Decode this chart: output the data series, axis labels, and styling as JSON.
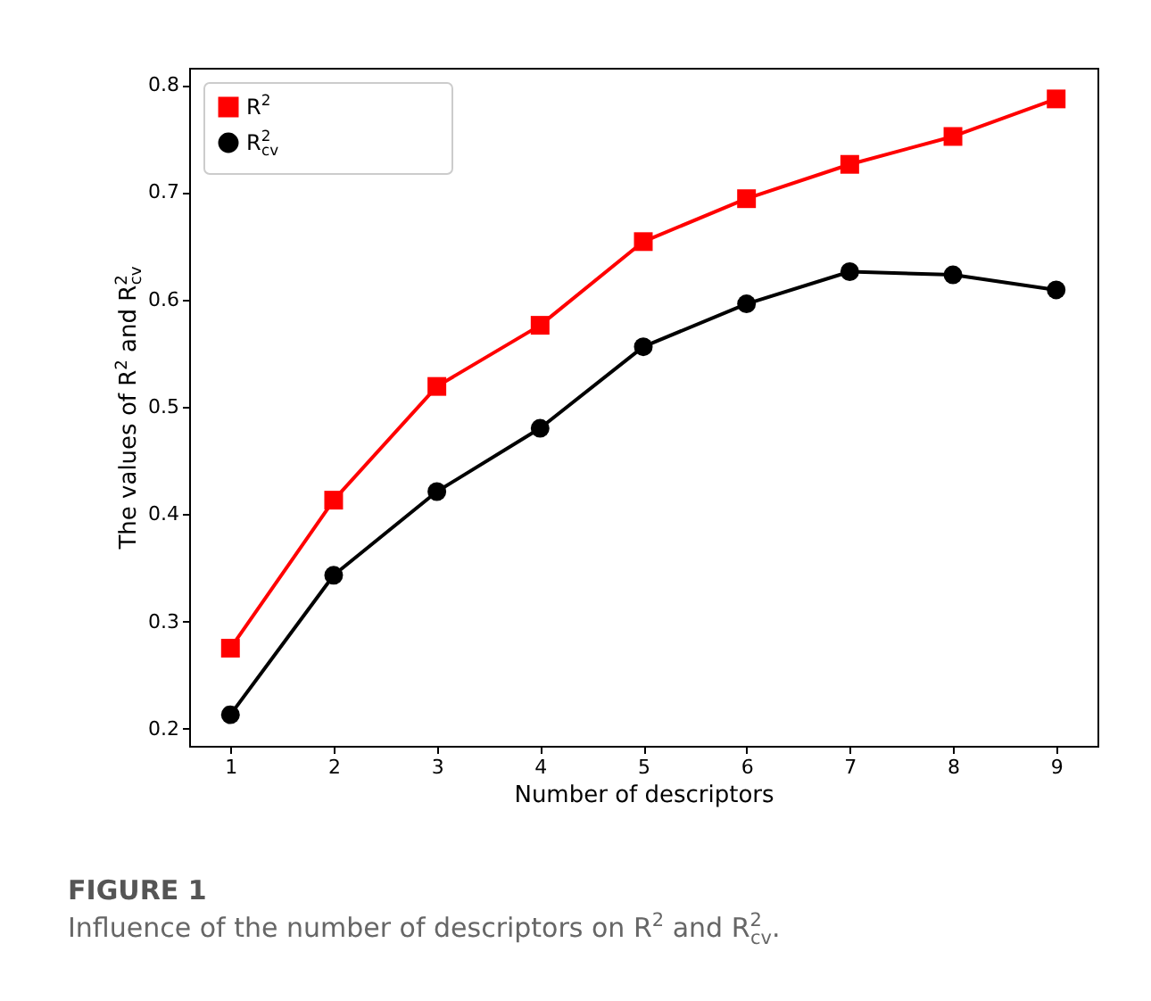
{
  "chart_data": {
    "type": "line",
    "title": "FIGURE 1",
    "subtitle": "Influence of the number of descriptors on R$^{2}$ and R$^{2}$$_{cv}$.",
    "xlabel": "Number of descriptors",
    "ylabel": "The values of R$^{2}$ and R$^{2}$$_{cv}$",
    "x": [
      1,
      2,
      3,
      4,
      5,
      6,
      7,
      8,
      9
    ],
    "series": [
      {
        "name": "R$^{2}$",
        "color": "#ff0000",
        "marker": "square",
        "values": [
          0.275,
          0.413,
          0.519,
          0.576,
          0.654,
          0.694,
          0.726,
          0.752,
          0.787
        ]
      },
      {
        "name": "R$^{2}$$_{cv}$",
        "color": "#000000",
        "marker": "circle",
        "values": [
          0.213,
          0.343,
          0.421,
          0.48,
          0.556,
          0.596,
          0.626,
          0.623,
          0.609
        ]
      }
    ],
    "xlim": [
      0.6,
      9.4
    ],
    "xticks": [
      1,
      2,
      3,
      4,
      5,
      6,
      7,
      8,
      9
    ],
    "ylim": [
      0.184,
      0.816
    ],
    "yticks": [
      0.2,
      0.3,
      0.4,
      0.5,
      0.6,
      0.7,
      0.8
    ],
    "grid": false,
    "legend": "top left",
    "line_style": "solid"
  }
}
